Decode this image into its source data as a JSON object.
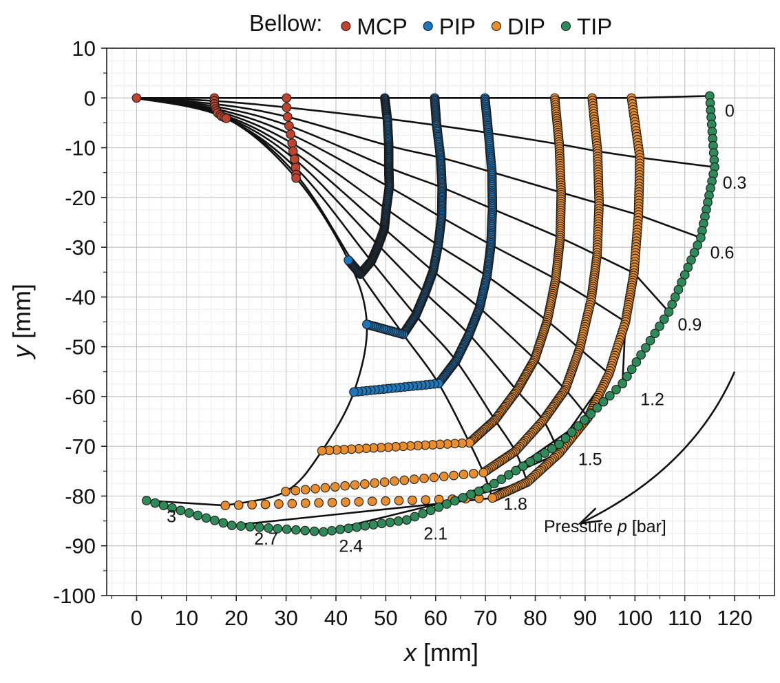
{
  "chart_data": {
    "type": "scatter",
    "xlabel_var": "x",
    "xlabel_unit": "[mm]",
    "ylabel_var": "y",
    "ylabel_unit": "[mm]",
    "xlim": [
      -6,
      128
    ],
    "ylim": [
      -100,
      10
    ],
    "xticks": [
      0,
      10,
      20,
      30,
      40,
      50,
      60,
      70,
      80,
      90,
      100,
      110,
      120
    ],
    "yticks": [
      10,
      0,
      -10,
      -20,
      -30,
      -40,
      -50,
      -60,
      -70,
      -80,
      -90,
      -100
    ],
    "grid": true,
    "legend": {
      "title": "Bellow:",
      "placement": "top",
      "entries": [
        {
          "name": "MCP",
          "color": "#c0432e"
        },
        {
          "name": "PIP",
          "color": "#1d77bd"
        },
        {
          "name": "DIP",
          "color": "#e98e2f"
        },
        {
          "name": "TIP",
          "color": "#2f8a5a"
        }
      ]
    },
    "pressure_labels": [
      {
        "text": "0",
        "x": 119,
        "y": -2.5
      },
      {
        "text": "0.3",
        "x": 120,
        "y": -17
      },
      {
        "text": "0.6",
        "x": 117.5,
        "y": -31
      },
      {
        "text": "0.9",
        "x": 111,
        "y": -45.5
      },
      {
        "text": "1.2",
        "x": 103.5,
        "y": -60.5
      },
      {
        "text": "1.5",
        "x": 91,
        "y": -72.5
      },
      {
        "text": "1.8",
        "x": 76,
        "y": -81.5
      },
      {
        "text": "2.1",
        "x": 60,
        "y": -87.5
      },
      {
        "text": "2.4",
        "x": 43,
        "y": -90
      },
      {
        "text": "2.7",
        "x": 26,
        "y": -88.5
      },
      {
        "text": "3",
        "x": 7,
        "y": -84
      }
    ],
    "pressure_arrow": {
      "label_prefix": "Pressure ",
      "label_var": "p",
      "label_unit": " [bar]",
      "start": [
        120,
        -55
      ],
      "end": [
        89,
        -85.5
      ],
      "label_x": 94,
      "label_y": -87.3
    },
    "configurations": [
      {
        "p": 0,
        "joints": [
          [
            0,
            0
          ],
          [
            15.6,
            0
          ],
          [
            30.1,
            0
          ],
          [
            49.8,
            0
          ],
          [
            59.8,
            0
          ],
          [
            69.9,
            0
          ],
          [
            83.9,
            0
          ],
          [
            91.4,
            0
          ],
          [
            99.3,
            0
          ],
          [
            115,
            0.4
          ]
        ]
      },
      {
        "p": 0.3,
        "joints": [
          [
            0,
            0
          ],
          [
            15.6,
            -0.6
          ],
          [
            30.1,
            -1.9
          ],
          [
            50.3,
            -4.2
          ],
          [
            60.2,
            -5.5
          ],
          [
            70.6,
            -7
          ],
          [
            84.8,
            -9.3
          ],
          [
            92.5,
            -10.7
          ],
          [
            101,
            -12
          ],
          [
            116,
            -13.9
          ]
        ]
      },
      {
        "p": 0.6,
        "joints": [
          [
            0,
            0
          ],
          [
            15.6,
            -1.2
          ],
          [
            30.3,
            -3.8
          ],
          [
            50.6,
            -9.6
          ],
          [
            61,
            -12
          ],
          [
            71.3,
            -14.9
          ],
          [
            85.2,
            -19
          ],
          [
            92.8,
            -21.2
          ],
          [
            100.7,
            -23.5
          ],
          [
            113.2,
            -28.1
          ]
        ]
      },
      {
        "p": 0.9,
        "joints": [
          [
            0,
            0
          ],
          [
            15.7,
            -1.7
          ],
          [
            30.6,
            -5.6
          ],
          [
            50.6,
            -14
          ],
          [
            61.3,
            -18
          ],
          [
            71.4,
            -22.3
          ],
          [
            85,
            -28.1
          ],
          [
            92.4,
            -31.6
          ],
          [
            99.8,
            -35.2
          ],
          [
            106.8,
            -43
          ]
        ]
      },
      {
        "p": 1.2,
        "joints": [
          [
            0,
            0
          ],
          [
            15.9,
            -2.2
          ],
          [
            30.9,
            -7.3
          ],
          [
            50.7,
            -17.9
          ],
          [
            61.2,
            -24
          ],
          [
            71.1,
            -29.5
          ],
          [
            84.1,
            -36.4
          ],
          [
            91.2,
            -40.6
          ],
          [
            98.1,
            -45
          ],
          [
            97.5,
            -57.4
          ]
        ]
      },
      {
        "p": 1.5,
        "joints": [
          [
            0,
            0
          ],
          [
            16.1,
            -2.6
          ],
          [
            31.2,
            -9.1
          ],
          [
            50.1,
            -22.3
          ],
          [
            60.5,
            -29.6
          ],
          [
            70.3,
            -35.8
          ],
          [
            82.4,
            -44.8
          ],
          [
            88.9,
            -50.4
          ],
          [
            94.8,
            -55.4
          ],
          [
            84.8,
            -69.6
          ]
        ]
      },
      {
        "p": 1.8,
        "joints": [
          [
            0,
            0
          ],
          [
            16.3,
            -3
          ],
          [
            31.4,
            -10.7
          ],
          [
            49.7,
            -26.3
          ],
          [
            59.5,
            -34.8
          ],
          [
            68.8,
            -42.2
          ],
          [
            79.9,
            -52.5
          ],
          [
            86,
            -58.6
          ],
          [
            90.6,
            -64.2
          ],
          [
            70.3,
            -78.4
          ]
        ]
      },
      {
        "p": 2.1,
        "joints": [
          [
            0,
            0
          ],
          [
            16.8,
            -3.4
          ],
          [
            31.7,
            -12.3
          ],
          [
            48.5,
            -29.6
          ],
          [
            57.9,
            -39.2
          ],
          [
            66.7,
            -47.5
          ],
          [
            76.3,
            -58.8
          ],
          [
            81.6,
            -64.8
          ],
          [
            84.8,
            -71.4
          ],
          [
            54.2,
            -84.8
          ]
        ]
      },
      {
        "p": 2.4,
        "joints": [
          [
            0,
            0
          ],
          [
            17.1,
            -3.7
          ],
          [
            31.9,
            -14
          ],
          [
            47.1,
            -32.8
          ],
          [
            56,
            -43.7
          ],
          [
            64.1,
            -52.8
          ],
          [
            71.9,
            -64.7
          ],
          [
            76,
            -71
          ],
          [
            78.4,
            -77.2
          ],
          [
            37.5,
            -87.2
          ]
        ]
      },
      {
        "p": 2.7,
        "joints": [
          [
            0,
            0
          ],
          [
            17.6,
            -3.9
          ],
          [
            32,
            -15.4
          ],
          [
            44.9,
            -35.4
          ],
          [
            53.5,
            -47.5
          ],
          [
            60.6,
            -57.4
          ],
          [
            66.8,
            -69.3
          ],
          [
            69.6,
            -75.3
          ],
          [
            71.4,
            -80.4
          ],
          [
            19.1,
            -85.9
          ]
        ]
      },
      {
        "p": 3,
        "joints": [
          [
            0,
            0
          ],
          [
            18,
            -4.1
          ],
          [
            32,
            -16.1
          ],
          [
            42.5,
            -32.6
          ],
          [
            46.2,
            -45.5
          ],
          [
            43.6,
            -59.1
          ],
          [
            37.2,
            -70.9
          ],
          [
            29.9,
            -79.1
          ],
          [
            17.8,
            -81.9
          ],
          [
            2,
            -80.9
          ]
        ]
      }
    ],
    "annotation_left_labels_anchor": "right"
  }
}
